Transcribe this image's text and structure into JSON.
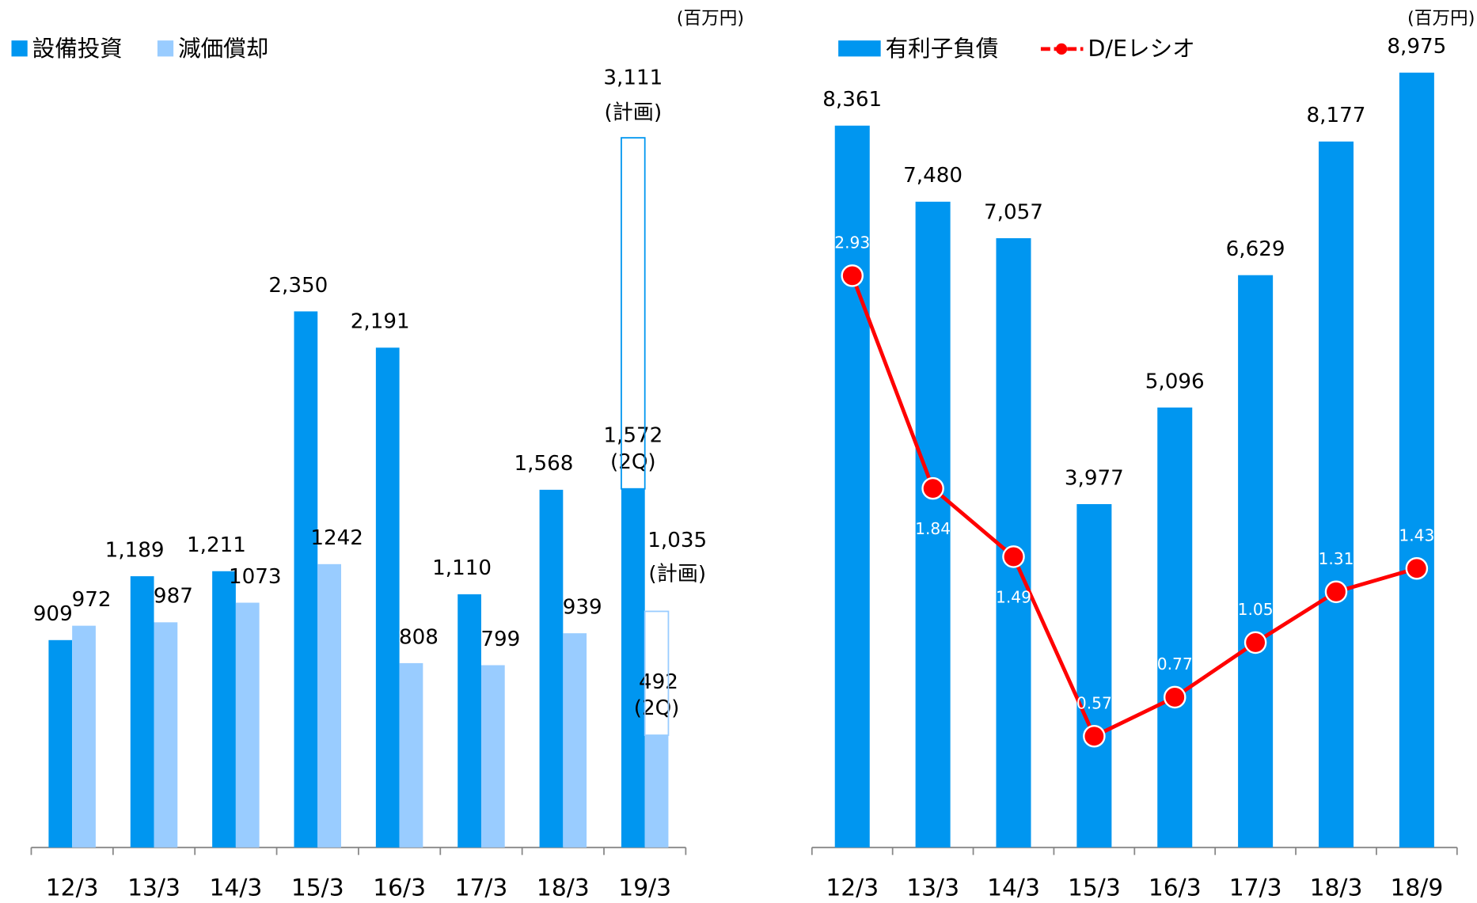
{
  "chart_data": [
    {
      "type": "bar",
      "unit": "(百万円)",
      "partial_note": "(2Q)",
      "plan_note": "(計画)",
      "categories": [
        "12/3",
        "13/3",
        "14/3",
        "15/3",
        "16/3",
        "17/3",
        "18/3",
        "19/3"
      ],
      "series": [
        {
          "name": "設備投資",
          "color": "#0096f0",
          "values": [
            909,
            1189,
            1211,
            2350,
            2191,
            1110,
            1568,
            1572
          ],
          "value_labels": [
            "909",
            "1,189",
            "1,211",
            "2,350",
            "2,191",
            "1,110",
            "1,568",
            "1,572"
          ],
          "plan_values": [
            null,
            null,
            null,
            null,
            null,
            null,
            null,
            3111
          ],
          "plan_value_labels": [
            null,
            null,
            null,
            null,
            null,
            null,
            null,
            "3,111"
          ]
        },
        {
          "name": "減価償却",
          "color": "#99ccff",
          "values": [
            972,
            987,
            1073,
            1242,
            808,
            799,
            939,
            492
          ],
          "plan_values": [
            null,
            null,
            null,
            null,
            null,
            null,
            null,
            1035
          ],
          "plan_value_labels": [
            null,
            null,
            null,
            null,
            null,
            null,
            null,
            "1,035"
          ]
        }
      ],
      "ylim": [
        0,
        3550
      ]
    },
    {
      "type": "bar_line",
      "unit": "(百万円)",
      "categories": [
        "12/3",
        "13/3",
        "14/3",
        "15/3",
        "16/3",
        "17/3",
        "18/3",
        "18/9"
      ],
      "series": [
        {
          "name": "有利子負債",
          "color": "#0096f0",
          "values": [
            8361,
            7480,
            7057,
            3977,
            5096,
            6629,
            8177,
            8975
          ],
          "value_labels": [
            "8,361",
            "7,480",
            "7,057",
            "3,977",
            "5,096",
            "6,629",
            "8,177",
            "8,975"
          ]
        },
        {
          "name": "D/Eレシオ",
          "color": "#ff0000",
          "axis": "y2",
          "values": [
            2.93,
            1.84,
            1.49,
            0.57,
            0.77,
            1.05,
            1.31,
            1.43
          ]
        }
      ],
      "ylim": [
        0,
        9380
      ],
      "y2lim": [
        0,
        4.15
      ]
    }
  ]
}
